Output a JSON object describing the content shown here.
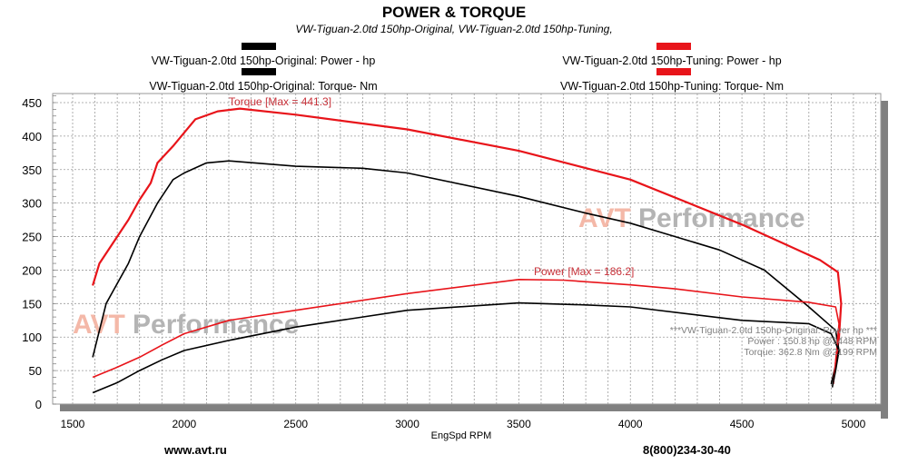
{
  "header": {
    "title": "POWER & TORQUE",
    "subtitle": "VW-Tiguan-2.0td 150hp-Original, VW-Tiguan-2.0td 150hp-Tuning,"
  },
  "legend": [
    {
      "label": "VW-Tiguan-2.0td 150hp-Original: Power -  hp",
      "color": "#000000"
    },
    {
      "label": "VW-Tiguan-2.0td 150hp-Original: Torque-  Nm",
      "color": "#000000"
    },
    {
      "label": "VW-Tiguan-2.0td 150hp-Tuning: Power -  hp",
      "color": "#e8141a"
    },
    {
      "label": "VW-Tiguan-2.0td 150hp-Tuning: Torque-  Nm",
      "color": "#e8141a"
    }
  ],
  "annotations": {
    "torque_max": "Torque [Max = 441.3]",
    "power_max": "Power  [Max = 186.2]",
    "watermark_1": "AVT",
    "watermark_2": "Performance",
    "stats_line1": "***VW-Tiguan-2.0td 150hp-Original: Power   hp     ***",
    "stats_line2": "Power :  150.8 hp      @3448 RPM",
    "stats_line3": "Torque:  362.8 Nm      @2199 RPM"
  },
  "footer": {
    "website": "www.avt.ru",
    "phone": "8(800)234-30-40"
  },
  "colors": {
    "original": "#000000",
    "tuning": "#e8141a",
    "grid": "#9a9a9a",
    "shadow": "#808080",
    "watermark_red": "#f4b8a8",
    "watermark_gray": "#b4b4b4"
  },
  "chart_data": {
    "type": "line",
    "title": "POWER & TORQUE",
    "subtitle": "VW-Tiguan-2.0td 150hp-Original, VW-Tiguan-2.0td 150hp-Tuning,",
    "xlabel": "EngSpd  RPM",
    "ylabel": "",
    "xlim": [
      1450,
      5130
    ],
    "ylim": [
      0,
      465
    ],
    "xticks": [
      1500,
      2000,
      2500,
      3000,
      3500,
      4000,
      4500,
      5000
    ],
    "yticks": [
      0,
      50,
      100,
      150,
      200,
      250,
      300,
      350,
      400,
      450
    ],
    "grid": true,
    "legend_position": "top",
    "series": [
      {
        "name": "VW-Tiguan-2.0td 150hp-Tuning: Torque-  Nm",
        "color": "#e8141a",
        "points": [
          [
            1590,
            177
          ],
          [
            1620,
            210
          ],
          [
            1700,
            250
          ],
          [
            1750,
            275
          ],
          [
            1800,
            305
          ],
          [
            1850,
            330
          ],
          [
            1880,
            360
          ],
          [
            1950,
            385
          ],
          [
            2000,
            405
          ],
          [
            2050,
            425
          ],
          [
            2150,
            437
          ],
          [
            2250,
            441
          ],
          [
            2500,
            432
          ],
          [
            3000,
            410
          ],
          [
            3500,
            378
          ],
          [
            4000,
            335
          ],
          [
            4500,
            268
          ],
          [
            4850,
            215
          ],
          [
            4930,
            197
          ],
          [
            4945,
            150
          ],
          [
            4935,
            100
          ],
          [
            4920,
            60
          ]
        ]
      },
      {
        "name": "VW-Tiguan-2.0td 150hp-Original: Torque-  Nm",
        "color": "#000000",
        "points": [
          [
            1590,
            70
          ],
          [
            1650,
            150
          ],
          [
            1750,
            210
          ],
          [
            1800,
            250
          ],
          [
            1880,
            300
          ],
          [
            1950,
            335
          ],
          [
            2000,
            345
          ],
          [
            2100,
            360
          ],
          [
            2200,
            363
          ],
          [
            2500,
            355
          ],
          [
            2800,
            352
          ],
          [
            3000,
            345
          ],
          [
            3500,
            310
          ],
          [
            3800,
            285
          ],
          [
            4000,
            270
          ],
          [
            4400,
            230
          ],
          [
            4600,
            200
          ],
          [
            4800,
            145
          ],
          [
            4920,
            110
          ],
          [
            4935,
            80
          ],
          [
            4900,
            30
          ]
        ]
      },
      {
        "name": "VW-Tiguan-2.0td 150hp-Tuning: Power -  hp",
        "color": "#e8141a",
        "points": [
          [
            1590,
            40
          ],
          [
            1700,
            55
          ],
          [
            1800,
            70
          ],
          [
            1900,
            88
          ],
          [
            2000,
            105
          ],
          [
            2200,
            125
          ],
          [
            2500,
            140
          ],
          [
            3000,
            165
          ],
          [
            3500,
            186
          ],
          [
            3700,
            185
          ],
          [
            4000,
            178
          ],
          [
            4200,
            172
          ],
          [
            4500,
            160
          ],
          [
            4800,
            152
          ],
          [
            4920,
            145
          ],
          [
            4935,
            120
          ],
          [
            4925,
            80
          ],
          [
            4910,
            30
          ]
        ]
      },
      {
        "name": "VW-Tiguan-2.0td 150hp-Original: Power -  hp",
        "color": "#000000",
        "points": [
          [
            1590,
            17
          ],
          [
            1700,
            32
          ],
          [
            1800,
            50
          ],
          [
            1900,
            66
          ],
          [
            2000,
            80
          ],
          [
            2200,
            95
          ],
          [
            2500,
            115
          ],
          [
            3000,
            140
          ],
          [
            3500,
            151
          ],
          [
            3800,
            148
          ],
          [
            4000,
            145
          ],
          [
            4500,
            125
          ],
          [
            4800,
            120
          ],
          [
            4900,
            105
          ],
          [
            4935,
            80
          ],
          [
            4920,
            50
          ],
          [
            4905,
            25
          ]
        ]
      }
    ]
  }
}
